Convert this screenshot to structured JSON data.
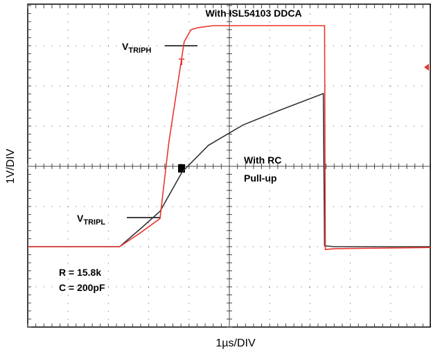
{
  "chart_data": {
    "type": "line",
    "xlabel": "1µs/DIV",
    "ylabel": "1V/DIV",
    "xlim": [
      0,
      10
    ],
    "ylim": [
      0,
      8
    ],
    "series": [
      {
        "name": "With ISL54103 DDCA",
        "color": "#e8352f",
        "x": [
          0,
          2.28,
          2.8,
          3.28,
          3.5,
          3.88,
          4.05,
          4.22,
          4.6,
          7.36,
          7.38,
          7.6,
          10
        ],
        "values": [
          2.0,
          2.0,
          2.35,
          2.7,
          4.6,
          7.1,
          7.4,
          7.45,
          7.5,
          7.5,
          1.93,
          1.95,
          1.98
        ]
      },
      {
        "name": "With RC Pull-up",
        "color": "#333333",
        "x": [
          0,
          2.28,
          2.8,
          3.28,
          3.83,
          4.48,
          5.34,
          6.21,
          7.33,
          7.36,
          7.6,
          10
        ],
        "values": [
          2.0,
          2.0,
          2.45,
          2.88,
          3.86,
          4.52,
          5.03,
          5.38,
          5.81,
          2.02,
          2.0,
          2.0
        ]
      }
    ],
    "annotations": [
      {
        "text": "V",
        "sub": "TRIPH"
      },
      {
        "text": "V",
        "sub": "TRIPL"
      },
      {
        "text": "With RC"
      },
      {
        "text": "Pull-up"
      },
      {
        "text": "R = 15.8k"
      },
      {
        "text": "C = 200pF"
      }
    ]
  }
}
